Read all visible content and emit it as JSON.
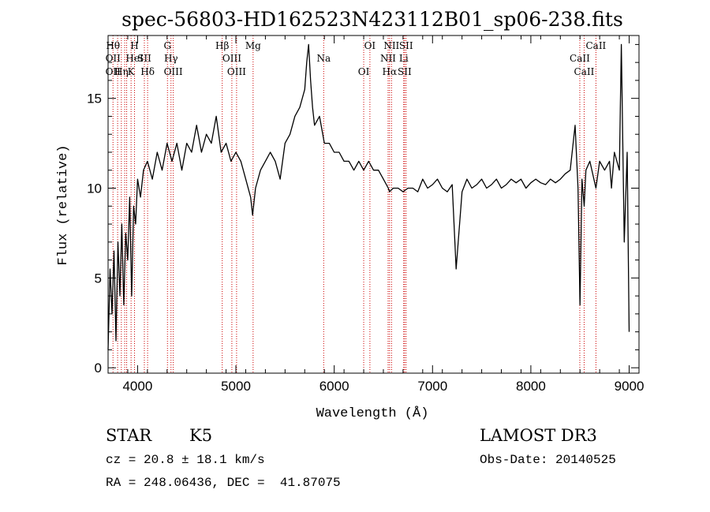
{
  "chart_data": {
    "type": "line",
    "title": "spec-56803-HD162523N423112B01_sp06-238.fits",
    "xlabel": "Wavelength (Å)",
    "ylabel": "Flux (relative)",
    "xlim": [
      3700,
      9100
    ],
    "ylim": [
      -0.3,
      18.5
    ],
    "x_ticks": [
      4000,
      5000,
      6000,
      7000,
      8000,
      9000
    ],
    "y_ticks": [
      0,
      5,
      10,
      15
    ],
    "line_color": "#000000",
    "marker_color": "#cc0000",
    "grid": false,
    "series": [
      {
        "x": [
          3700,
          3720,
          3740,
          3760,
          3780,
          3800,
          3820,
          3840,
          3860,
          3880,
          3900,
          3920,
          3940,
          3960,
          3980,
          4000,
          4030,
          4060,
          4100,
          4150,
          4200,
          4250,
          4300,
          4350,
          4400,
          4450,
          4500,
          4550,
          4600,
          4650,
          4700,
          4750,
          4800,
          4850,
          4900,
          4950,
          5000,
          5050,
          5100,
          5150,
          5170,
          5200,
          5250,
          5300,
          5350,
          5400,
          5450,
          5500,
          5550,
          5600,
          5650,
          5700,
          5720,
          5740,
          5760,
          5780,
          5800,
          5850,
          5900,
          5950,
          6000,
          6050,
          6100,
          6150,
          6200,
          6250,
          6300,
          6350,
          6400,
          6450,
          6500,
          6550,
          6563,
          6600,
          6650,
          6700,
          6750,
          6800,
          6850,
          6900,
          6950,
          7000,
          7050,
          7100,
          7150,
          7200,
          7240,
          7300,
          7350,
          7400,
          7450,
          7500,
          7550,
          7600,
          7650,
          7700,
          7750,
          7800,
          7850,
          7900,
          7950,
          8000,
          8050,
          8100,
          8150,
          8200,
          8250,
          8300,
          8350,
          8400,
          8450,
          8480,
          8500,
          8520,
          8542,
          8560,
          8600,
          8662,
          8700,
          8750,
          8800,
          8820,
          8850,
          8900,
          8920,
          8950,
          8980,
          9000
        ],
        "y": [
          1.0,
          5.5,
          3.0,
          6.5,
          1.5,
          7.0,
          4.0,
          8.0,
          3.5,
          7.5,
          6.0,
          9.5,
          4.0,
          9.0,
          8.0,
          10.5,
          9.5,
          11.0,
          11.5,
          10.5,
          12.0,
          11.0,
          12.5,
          11.5,
          12.5,
          11.0,
          12.5,
          12.0,
          13.5,
          12.0,
          13.0,
          12.5,
          14.0,
          12.0,
          12.5,
          11.5,
          12.0,
          11.5,
          10.5,
          9.5,
          8.5,
          10.0,
          11.0,
          11.5,
          12.0,
          11.5,
          10.5,
          12.5,
          13.0,
          14.0,
          14.5,
          15.5,
          17.0,
          18.0,
          16.0,
          14.5,
          13.5,
          14.0,
          12.5,
          12.5,
          12.0,
          12.0,
          11.5,
          11.5,
          11.0,
          11.5,
          11.0,
          11.5,
          11.0,
          11.0,
          10.5,
          10.0,
          9.8,
          10.0,
          10.0,
          9.8,
          10.0,
          10.0,
          9.8,
          10.5,
          10.0,
          10.2,
          10.5,
          10.0,
          9.8,
          10.2,
          5.5,
          9.8,
          10.5,
          10.0,
          10.2,
          10.5,
          10.0,
          10.2,
          10.5,
          10.0,
          10.2,
          10.5,
          10.3,
          10.5,
          10.0,
          10.3,
          10.5,
          10.3,
          10.2,
          10.5,
          10.3,
          10.5,
          10.8,
          11.0,
          13.5,
          10.0,
          3.5,
          10.5,
          9.0,
          11.0,
          11.5,
          10.0,
          11.5,
          11.0,
          11.5,
          10.0,
          12.0,
          11.0,
          18.0,
          7.0,
          12.0,
          2.0
        ]
      }
    ],
    "line_markers": [
      {
        "x": 3750,
        "labels": [
          "Hθ",
          "OII",
          "OII"
        ]
      },
      {
        "x": 3797,
        "labels": []
      },
      {
        "x": 3835,
        "labels": [
          "Hη"
        ]
      },
      {
        "x": 3869,
        "labels": []
      },
      {
        "x": 3889,
        "labels": []
      },
      {
        "x": 3934,
        "labels": [
          "K"
        ]
      },
      {
        "x": 3969,
        "labels": [
          "H",
          "HeI"
        ]
      },
      {
        "x": 4069,
        "labels": [
          "SII"
        ]
      },
      {
        "x": 4102,
        "labels": [
          "Hδ"
        ]
      },
      {
        "x": 4304,
        "labels": [
          "G"
        ]
      },
      {
        "x": 4340,
        "labels": [
          "Hγ"
        ]
      },
      {
        "x": 4363,
        "labels": [
          "OIII"
        ]
      },
      {
        "x": 4861,
        "labels": [
          "Hβ"
        ]
      },
      {
        "x": 4959,
        "labels": [
          "OIII"
        ]
      },
      {
        "x": 5007,
        "labels": [
          "OIII"
        ]
      },
      {
        "x": 5175,
        "labels": [
          "Mg"
        ]
      },
      {
        "x": 5893,
        "labels": [
          "Na"
        ]
      },
      {
        "x": 6300,
        "labels": [
          "OI"
        ]
      },
      {
        "x": 6363,
        "labels": [
          "OI"
        ]
      },
      {
        "x": 6548,
        "labels": [
          "NII"
        ]
      },
      {
        "x": 6563,
        "labels": [
          "Hα"
        ]
      },
      {
        "x": 6583,
        "labels": [
          "NII"
        ]
      },
      {
        "x": 6707,
        "labels": [
          "Li"
        ]
      },
      {
        "x": 6716,
        "labels": [
          "SII"
        ]
      },
      {
        "x": 6731,
        "labels": [
          "SII"
        ]
      },
      {
        "x": 8498,
        "labels": [
          "CaII"
        ]
      },
      {
        "x": 8542,
        "labels": [
          "CaII"
        ]
      },
      {
        "x": 8662,
        "labels": [
          "CaII"
        ]
      }
    ]
  },
  "info": {
    "object_class": "STAR",
    "subclass": "K5",
    "survey": "LAMOST DR3",
    "redshift": "cz = 20.8 ± 18.1 km/s",
    "obs_date": "Obs-Date: 20140525",
    "coords": "RA = 248.06436, DEC =  41.87075"
  }
}
